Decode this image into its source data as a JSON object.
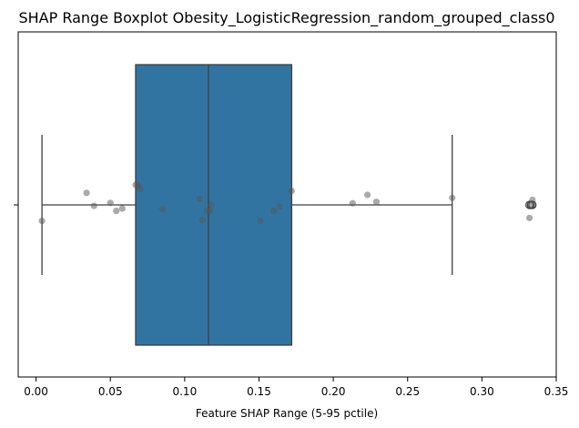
{
  "chart_data": {
    "type": "boxplot",
    "title": "SHAP Range Boxplot Obesity_LogisticRegression_random_grouped_class0",
    "xlabel": "Feature SHAP Range (5-95 pctile)",
    "ylabel": "",
    "xlim": [
      -0.012,
      0.35
    ],
    "xticks": [
      0.0,
      0.05,
      0.1,
      0.15,
      0.2,
      0.25,
      0.3,
      0.35
    ],
    "xtick_labels": [
      "0.00",
      "0.05",
      "0.10",
      "0.15",
      "0.20",
      "0.25",
      "0.30",
      "0.35"
    ],
    "grid": false,
    "box": {
      "whisker_low": 0.004,
      "q1": 0.067,
      "median": 0.116,
      "q3": 0.172,
      "whisker_high": 0.28,
      "outliers": [
        0.332,
        0.333,
        0.334
      ],
      "color": "#3274a1"
    },
    "points": [
      {
        "x": 0.004,
        "y": -0.08
      },
      {
        "x": 0.034,
        "y": 0.06
      },
      {
        "x": 0.039,
        "y": -0.005
      },
      {
        "x": 0.05,
        "y": 0.01
      },
      {
        "x": 0.054,
        "y": -0.03
      },
      {
        "x": 0.058,
        "y": -0.018
      },
      {
        "x": 0.067,
        "y": 0.1
      },
      {
        "x": 0.069,
        "y": 0.1
      },
      {
        "x": 0.07,
        "y": 0.08
      },
      {
        "x": 0.085,
        "y": -0.02
      },
      {
        "x": 0.11,
        "y": 0.03
      },
      {
        "x": 0.112,
        "y": -0.075
      },
      {
        "x": 0.115,
        "y": -0.03
      },
      {
        "x": 0.117,
        "y": -0.03
      },
      {
        "x": 0.118,
        "y": 0.0
      },
      {
        "x": 0.151,
        "y": -0.08
      },
      {
        "x": 0.16,
        "y": -0.03
      },
      {
        "x": 0.164,
        "y": -0.008
      },
      {
        "x": 0.172,
        "y": 0.07
      },
      {
        "x": 0.213,
        "y": 0.008
      },
      {
        "x": 0.223,
        "y": 0.05
      },
      {
        "x": 0.229,
        "y": 0.015
      },
      {
        "x": 0.28,
        "y": 0.035
      },
      {
        "x": 0.332,
        "y": -0.065
      },
      {
        "x": 0.333,
        "y": 0.0
      },
      {
        "x": 0.334,
        "y": 0.025
      }
    ],
    "point_color": "#555555",
    "point_opacity": 0.5
  }
}
